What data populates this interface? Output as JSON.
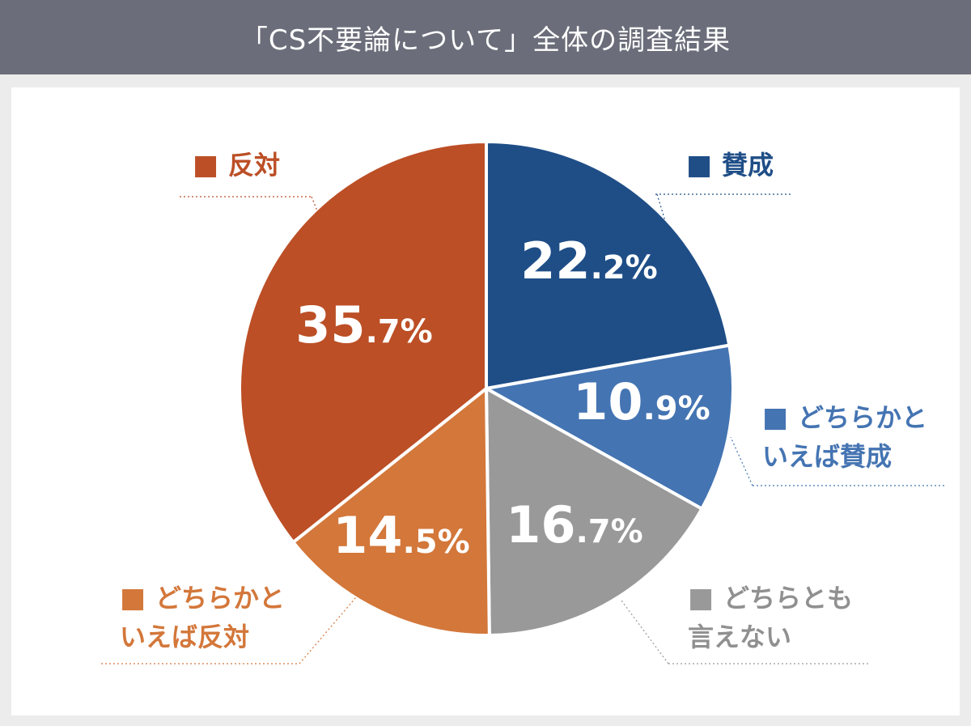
{
  "header": {
    "title": "「CS不要論について」全体の調査結果"
  },
  "chart_data": {
    "type": "pie",
    "start_angle_deg": 0,
    "direction": "clockwise",
    "slices": [
      {
        "label": "賛成",
        "value": 22.2,
        "value_int": "22",
        "value_dec": ".2%",
        "color": "#1f4e87"
      },
      {
        "label": "どちらかといえば賛成",
        "label_lines": [
          "どちらかと",
          "いえば賛成"
        ],
        "value": 10.9,
        "value_int": "10",
        "value_dec": ".9%",
        "color": "#4474b2"
      },
      {
        "label": "どちらとも言えない",
        "label_lines": [
          "どちらとも",
          "言えない"
        ],
        "value": 16.7,
        "value_int": "16",
        "value_dec": ".7%",
        "color": "#999999"
      },
      {
        "label": "どちらかといえば反対",
        "label_lines": [
          "どちらかと",
          "いえば反対"
        ],
        "value": 14.5,
        "value_int": "14",
        "value_dec": ".5%",
        "color": "#d3773a"
      },
      {
        "label": "反対",
        "value": 35.7,
        "value_int": "35",
        "value_dec": ".7%",
        "color": "#bc4f26"
      }
    ],
    "legend_marker": "■",
    "legend_text_color_gray": "#909090"
  }
}
